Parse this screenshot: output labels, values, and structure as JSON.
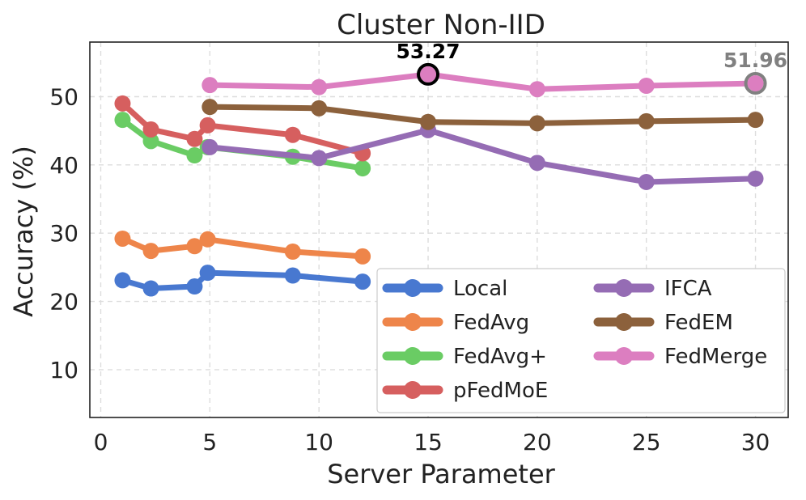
{
  "chart_data": {
    "type": "line",
    "title": "Cluster Non-IID",
    "xlabel": "Server Parameter",
    "ylabel": "Accuracy (%)",
    "xlim": [
      -0.5,
      31.5
    ],
    "ylim": [
      3,
      58
    ],
    "xticks": [
      0,
      5,
      10,
      15,
      20,
      25,
      30
    ],
    "yticks": [
      10,
      20,
      30,
      40,
      50
    ],
    "grid": true,
    "legend_position": "lower-right",
    "series": [
      {
        "name": "Local",
        "color": "#4878d0",
        "x": [
          1,
          2.3,
          4.3,
          4.9,
          8.8,
          12
        ],
        "y": [
          23.1,
          21.9,
          22.2,
          24.2,
          23.8,
          22.9
        ]
      },
      {
        "name": "FedAvg",
        "color": "#ee854a",
        "x": [
          1,
          2.3,
          4.3,
          4.9,
          8.8,
          12
        ],
        "y": [
          29.2,
          27.4,
          28.1,
          29.1,
          27.3,
          26.6
        ]
      },
      {
        "name": "FedAvg+",
        "color": "#6acc64",
        "x": [
          1,
          2.3,
          4.3,
          4.9,
          8.8,
          12
        ],
        "y": [
          46.6,
          43.5,
          41.4,
          42.6,
          41.2,
          39.5
        ]
      },
      {
        "name": "pFedMoE",
        "color": "#d65f5f",
        "x": [
          1,
          2.3,
          4.3,
          4.9,
          8.8,
          12
        ],
        "y": [
          49.0,
          45.2,
          43.8,
          45.8,
          44.4,
          41.7
        ]
      },
      {
        "name": "IFCA",
        "color": "#956cb4",
        "x": [
          5,
          10,
          15,
          20,
          25,
          30
        ],
        "y": [
          42.6,
          41.0,
          45.1,
          40.3,
          37.5,
          38.0
        ]
      },
      {
        "name": "FedEM",
        "color": "#8c613c",
        "x": [
          5,
          10,
          15,
          20,
          25,
          30
        ],
        "y": [
          48.5,
          48.3,
          46.3,
          46.1,
          46.4,
          46.6
        ]
      },
      {
        "name": "FedMerge",
        "color": "#dc7ec0",
        "x": [
          5,
          10,
          15,
          20,
          25,
          30
        ],
        "y": [
          51.7,
          51.4,
          53.27,
          51.1,
          51.6,
          51.96
        ]
      }
    ],
    "annotations": [
      {
        "text": "53.27",
        "x": 15,
        "y": 53.27,
        "color": "#000000",
        "ring_color": "#000000"
      },
      {
        "text": "51.96",
        "x": 30,
        "y": 51.96,
        "color": "#808080",
        "ring_color": "#808080"
      }
    ]
  }
}
